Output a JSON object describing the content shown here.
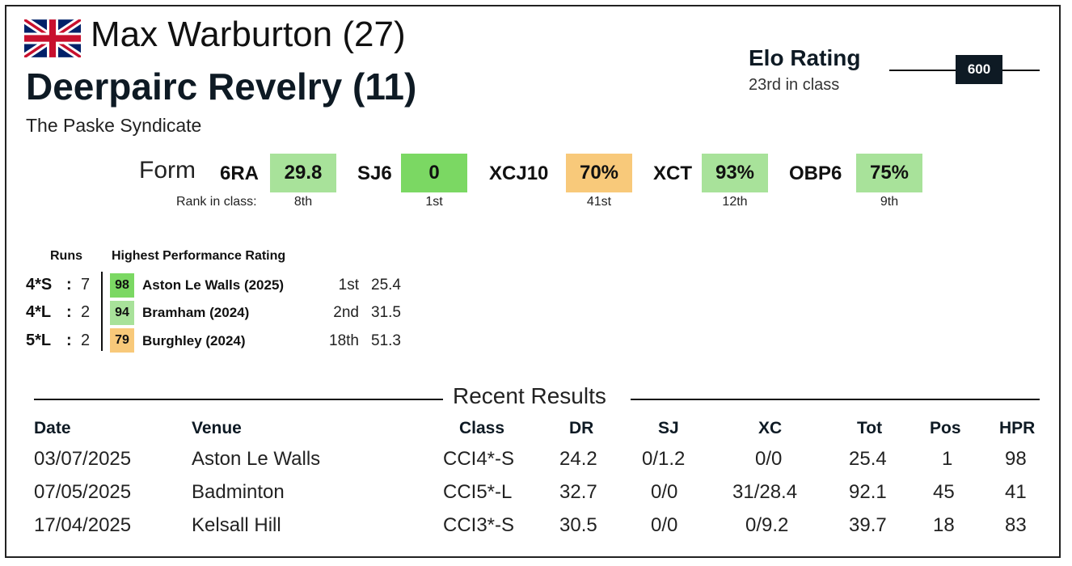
{
  "rider": {
    "name_age": "Max Warburton (27)",
    "flag": "uk-flag-icon"
  },
  "horse": {
    "name_age": "Deerpairc Revelry (11)"
  },
  "owner": "The Paske Syndicate",
  "elo": {
    "title": "Elo Rating",
    "subtitle": "23rd in class",
    "value": "600"
  },
  "form": {
    "label": "Form",
    "rank_label": "Rank in class:",
    "items": [
      {
        "code": "6RA",
        "value": "29.8",
        "rank": "8th",
        "color": "#a8e29a"
      },
      {
        "code": "SJ6",
        "value": "0",
        "rank": "1st",
        "color": "#7bd863"
      },
      {
        "code": "XCJ10",
        "value": "70%",
        "rank": "41st",
        "color": "#f8c97a"
      },
      {
        "code": "XCT",
        "value": "93%",
        "rank": "12th",
        "color": "#a8e29a"
      },
      {
        "code": "OBP6",
        "value": "75%",
        "rank": "9th",
        "color": "#a8e29a"
      }
    ]
  },
  "runs": {
    "header": "Runs",
    "hpr_header": "Highest Performance Rating",
    "rows": [
      {
        "class": "4*S",
        "sep": ":",
        "count": "7",
        "hpr": "98",
        "hpr_color": "#7bd863",
        "event": "Aston Le Walls  (2025)",
        "pos": "1st",
        "score": "25.4"
      },
      {
        "class": "4*L",
        "sep": ":",
        "count": "2",
        "hpr": "94",
        "hpr_color": "#a8e29a",
        "event": "Bramham  (2024)",
        "pos": "2nd",
        "score": "31.5"
      },
      {
        "class": "5*L",
        "sep": ":",
        "count": "2",
        "hpr": "79",
        "hpr_color": "#f8c97a",
        "event": "Burghley  (2024)",
        "pos": "18th",
        "score": "51.3"
      }
    ]
  },
  "recent": {
    "title": "Recent Results",
    "headers": {
      "date": "Date",
      "venue": "Venue",
      "class": "Class",
      "dr": "DR",
      "sj": "SJ",
      "xc": "XC",
      "tot": "Tot",
      "pos": "Pos",
      "hpr": "HPR"
    },
    "rows": [
      {
        "date": "03/07/2025",
        "venue": "Aston Le Walls",
        "class": "CCI4*-S",
        "dr": "24.2",
        "sj": "0/1.2",
        "xc": "0/0",
        "tot": "25.4",
        "pos": "1",
        "hpr": "98"
      },
      {
        "date": "07/05/2025",
        "venue": "Badminton",
        "class": "CCI5*-L",
        "dr": "32.7",
        "sj": "0/0",
        "xc": "31/28.4",
        "tot": "92.1",
        "pos": "45",
        "hpr": "41"
      },
      {
        "date": "17/04/2025",
        "venue": "Kelsall Hill",
        "class": "CCI3*-S",
        "dr": "30.5",
        "sj": "0/0",
        "xc": "0/9.2",
        "tot": "39.7",
        "pos": "18",
        "hpr": "83"
      }
    ]
  }
}
